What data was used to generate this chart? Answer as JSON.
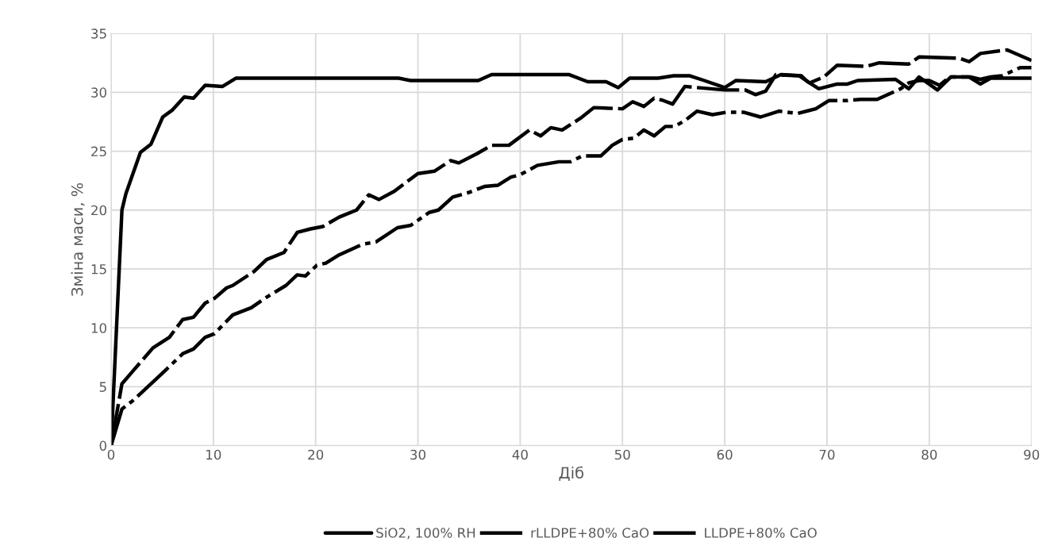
{
  "chart_data": {
    "type": "line",
    "xlabel": "Діб",
    "ylabel": "Зміна маси, %",
    "xlim": [
      0,
      90
    ],
    "xticks": [
      0,
      10,
      20,
      30,
      40,
      50,
      60,
      70,
      80,
      90
    ],
    "ylim": [
      0,
      35
    ],
    "yticks": [
      0,
      5,
      10,
      15,
      20,
      25,
      30,
      35
    ],
    "grid": true,
    "legend": "bottom",
    "marker": "none",
    "series": [
      {
        "name": "SiO2, 100% RH",
        "color": "#000000",
        "line_style": "solid",
        "x": [
          0,
          1.06,
          1.45,
          2.87,
          3.9,
          5.05,
          6.0,
          7.15,
          8.06,
          9.2,
          10.9,
          12.2,
          20,
          28.1,
          29.3,
          35.9,
          37.2,
          44.8,
          46.6,
          48.4,
          49.6,
          50.7,
          53.5,
          55,
          56.6,
          58,
          60,
          61.1,
          64,
          65.5,
          67.5,
          68.1,
          69.2,
          71,
          72,
          73,
          76.7,
          78,
          79,
          80.8,
          82.1,
          83.9,
          85,
          86,
          90
        ],
        "values": [
          0,
          20.0,
          21.4,
          24.9,
          25.6,
          27.9,
          28.5,
          29.6,
          29.5,
          30.6,
          30.5,
          31.2,
          31.2,
          31.2,
          31.0,
          31.0,
          31.5,
          31.5,
          30.9,
          30.9,
          30.4,
          31.2,
          31.2,
          31.4,
          31.4,
          31.0,
          30.4,
          31.0,
          30.9,
          31.5,
          31.4,
          30.9,
          30.3,
          30.7,
          30.7,
          31.0,
          31.1,
          30.3,
          31.3,
          30.2,
          31.3,
          31.3,
          30.7,
          31.2,
          31.2
        ]
      },
      {
        "name": "rLLDPE+80% CaO",
        "color": "#000000",
        "line_style": "dashed",
        "x": [
          0,
          1.06,
          2.1,
          4.1,
          5.7,
          7.0,
          8.05,
          9.2,
          10.1,
          11.3,
          11.9,
          14.0,
          15.2,
          16.9,
          18.2,
          19.5,
          20.7,
          22.3,
          24.0,
          25.2,
          26.2,
          27.7,
          30.0,
          31.6,
          33.2,
          34.0,
          35.8,
          37.2,
          38.9,
          40.9,
          42.0,
          43.0,
          44.1,
          45.9,
          47.2,
          50.0,
          51.0,
          52.1,
          53.1,
          54.0,
          54.9,
          56.1,
          57.3,
          60,
          62,
          63,
          64,
          65,
          67.3,
          68.3,
          69.7,
          71,
          73.8,
          75.1,
          78,
          79,
          82.9,
          83.9,
          85,
          87.6,
          90
        ],
        "values": [
          0,
          5.25,
          6.3,
          8.3,
          9.2,
          10.7,
          10.9,
          12.1,
          12.5,
          13.4,
          13.6,
          14.8,
          15.8,
          16.4,
          18.1,
          18.4,
          18.6,
          19.4,
          20.0,
          21.3,
          20.9,
          21.6,
          23.1,
          23.3,
          24.2,
          24.0,
          24.8,
          25.5,
          25.5,
          26.8,
          26.3,
          27.0,
          26.8,
          27.8,
          28.7,
          28.6,
          29.2,
          28.8,
          29.5,
          29.3,
          29.0,
          30.5,
          30.4,
          30.2,
          30.2,
          29.8,
          30.1,
          31.5,
          31.4,
          30.8,
          31.3,
          32.3,
          32.2,
          32.5,
          32.4,
          33.0,
          32.9,
          32.6,
          33.3,
          33.6,
          32.7
        ]
      },
      {
        "name": "LLDPE+80% CaO",
        "color": "#000000",
        "line_style": "dotted",
        "x": [
          0,
          1.06,
          2.1,
          3.6,
          5.2,
          7.0,
          8.05,
          9.2,
          10.1,
          11.9,
          13.7,
          15.2,
          17.1,
          18.2,
          19.0,
          20.1,
          21.0,
          22.3,
          24.6,
          25.9,
          28.0,
          29.3,
          31.1,
          32.0,
          33.4,
          35.0,
          36.5,
          37.8,
          39.1,
          40.0,
          41.7,
          43.8,
          44.9,
          46.1,
          47.9,
          49.0,
          50.0,
          51.1,
          52.1,
          53.1,
          54.2,
          55.1,
          56.1,
          57.3,
          58.8,
          60.1,
          61.9,
          63.5,
          65.3,
          67.1,
          68.9,
          70.2,
          72.0,
          73.3,
          74.9,
          77.2,
          78,
          79,
          80,
          81,
          82,
          84,
          85,
          86,
          87.1,
          88.9,
          90
        ],
        "values": [
          0,
          3.1,
          3.8,
          5.0,
          6.3,
          7.8,
          8.2,
          9.2,
          9.5,
          11.1,
          11.7,
          12.6,
          13.6,
          14.5,
          14.4,
          15.3,
          15.5,
          16.2,
          17.1,
          17.3,
          18.5,
          18.7,
          19.8,
          20.0,
          21.1,
          21.5,
          22.0,
          22.1,
          22.8,
          23.0,
          23.8,
          24.1,
          24.1,
          24.6,
          24.6,
          25.5,
          26.0,
          26.1,
          26.8,
          26.3,
          27.1,
          27.1,
          27.6,
          28.4,
          28.1,
          28.3,
          28.3,
          27.9,
          28.4,
          28.2,
          28.6,
          29.3,
          29.3,
          29.4,
          29.4,
          30.3,
          30.8,
          31.0,
          31.0,
          30.6,
          31.3,
          31.3,
          31.1,
          31.3,
          31.4,
          32.1,
          32.1
        ]
      }
    ]
  }
}
